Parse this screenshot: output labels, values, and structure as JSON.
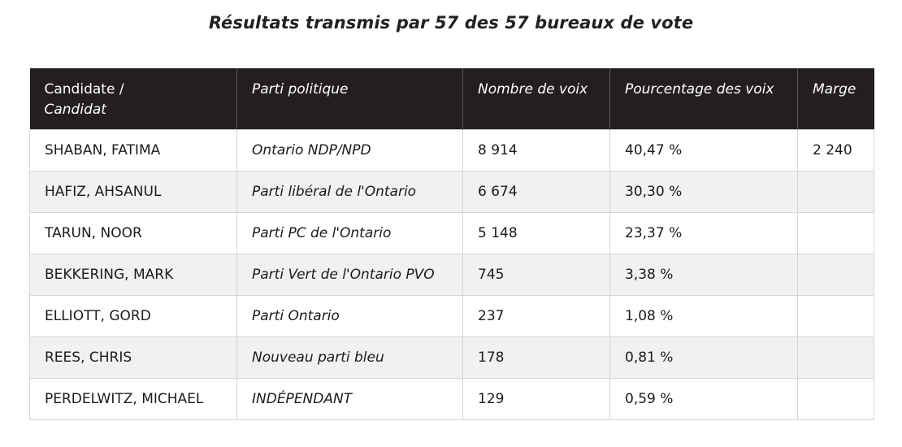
{
  "title": "Résultats transmis par 57 des 57 bureaux de vote",
  "table": {
    "headers": {
      "candidate_line1": "Candidate /",
      "candidate_line2": "Candidat",
      "party": "Parti politique",
      "votes": "Nombre de voix",
      "percent": "Pourcentage des voix",
      "margin": "Marge"
    },
    "header_color": "#231f20",
    "stripe_color": "#f1f1f1",
    "rows": [
      {
        "candidate": "SHABAN, FATIMA",
        "party": "Ontario NDP/NPD",
        "votes": "8 914",
        "percent": "40,47 %",
        "margin": "2 240"
      },
      {
        "candidate": "HAFIZ, AHSANUL",
        "party": "Parti libéral de l'Ontario",
        "votes": "6 674",
        "percent": "30,30 %",
        "margin": ""
      },
      {
        "candidate": "TARUN, NOOR",
        "party": "Parti PC de l'Ontario",
        "votes": "5 148",
        "percent": "23,37 %",
        "margin": ""
      },
      {
        "candidate": "BEKKERING, MARK",
        "party": "Parti Vert de l'Ontario PVO",
        "votes": "745",
        "percent": "3,38 %",
        "margin": ""
      },
      {
        "candidate": "ELLIOTT, GORD",
        "party": "Parti Ontario",
        "votes": "237",
        "percent": "1,08 %",
        "margin": ""
      },
      {
        "candidate": "REES, CHRIS",
        "party": "Nouveau parti bleu",
        "votes": "178",
        "percent": "0,81 %",
        "margin": ""
      },
      {
        "candidate": "PERDELWITZ, MICHAEL",
        "party": "INDÉPENDANT",
        "votes": "129",
        "percent": "0,59 %",
        "margin": ""
      }
    ]
  }
}
